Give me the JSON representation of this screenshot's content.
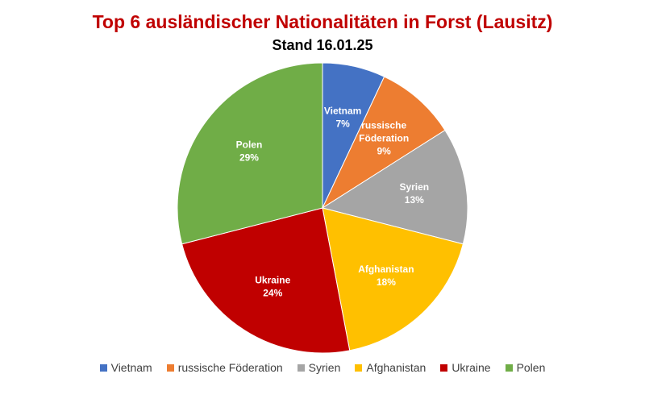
{
  "chart_data": {
    "type": "pie",
    "title": "Top 6 ausländischer Nationalitäten in Forst (Lausitz)",
    "subtitle": "Stand 16.01.25",
    "legend_position": "bottom",
    "slices": [
      {
        "label": "Vietnam",
        "value": 7,
        "value_label": "7%",
        "color": "#4472c4",
        "lines": [
          "Vietnam"
        ]
      },
      {
        "label": "russische Föderation",
        "value": 9,
        "value_label": "9%",
        "color": "#ed7d31",
        "lines": [
          "russische",
          "Föderation"
        ]
      },
      {
        "label": "Syrien",
        "value": 13,
        "value_label": "13%",
        "color": "#a5a5a5",
        "lines": [
          "Syrien"
        ]
      },
      {
        "label": "Afghanistan",
        "value": 18,
        "value_label": "18%",
        "color": "#ffc000",
        "lines": [
          "Afghanistan"
        ]
      },
      {
        "label": "Ukraine",
        "value": 24,
        "value_label": "24%",
        "color": "#c00000",
        "lines": [
          "Ukraine"
        ]
      },
      {
        "label": "Polen",
        "value": 29,
        "value_label": "29%",
        "color": "#70ad47",
        "lines": [
          "Polen"
        ]
      }
    ]
  }
}
